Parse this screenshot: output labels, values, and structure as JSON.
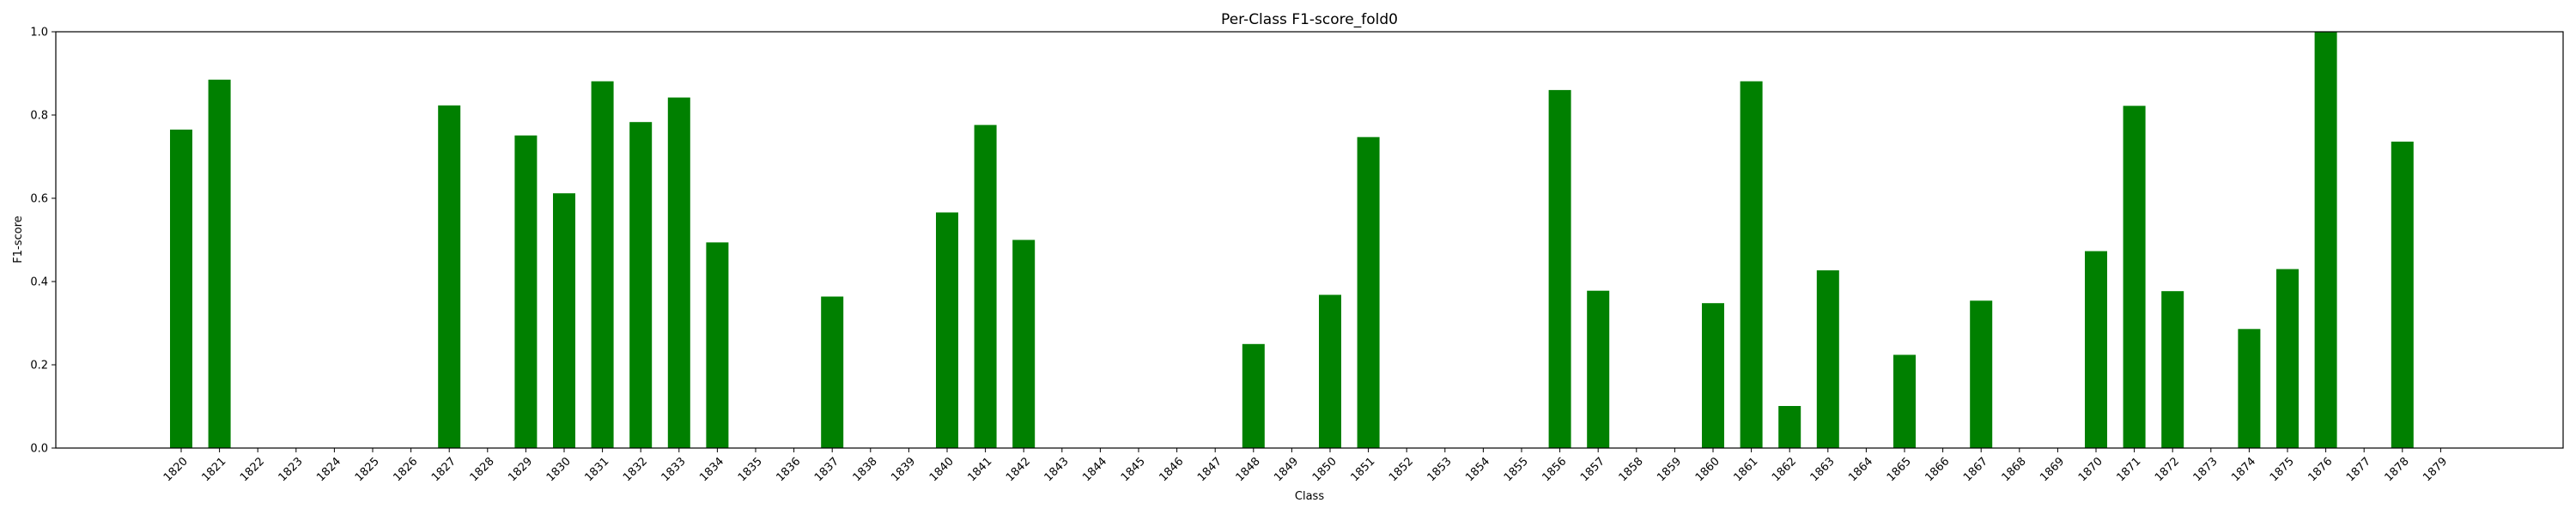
{
  "chart_data": {
    "type": "bar",
    "title": "Per-Class F1-score_fold0",
    "xlabel": "Class",
    "ylabel": "F1-score",
    "ylim": [
      0,
      1.0
    ],
    "yticks": [
      "0.0",
      "0.2",
      "0.4",
      "0.6",
      "0.8",
      "1.0"
    ],
    "grid": false,
    "bar_color": "#008000",
    "categories": [
      "1820",
      "1821",
      "1822",
      "1823",
      "1824",
      "1825",
      "1826",
      "1827",
      "1828",
      "1829",
      "1830",
      "1831",
      "1832",
      "1833",
      "1834",
      "1835",
      "1836",
      "1837",
      "1838",
      "1839",
      "1840",
      "1841",
      "1842",
      "1843",
      "1844",
      "1845",
      "1846",
      "1847",
      "1848",
      "1849",
      "1850",
      "1851",
      "1852",
      "1853",
      "1854",
      "1855",
      "1856",
      "1857",
      "1858",
      "1859",
      "1860",
      "1861",
      "1862",
      "1863",
      "1864",
      "1865",
      "1866",
      "1867",
      "1868",
      "1869",
      "1870",
      "1871",
      "1872",
      "1873",
      "1874",
      "1875",
      "1876",
      "1877",
      "1878",
      "1879"
    ],
    "values": [
      0.765,
      0.885,
      0,
      0,
      0,
      0,
      0,
      0.823,
      0,
      0.751,
      0.612,
      0.881,
      0.783,
      0.842,
      0.494,
      0,
      0,
      0.364,
      0,
      0,
      0.566,
      0.776,
      0.5,
      0,
      0,
      0,
      0,
      0,
      0.25,
      0,
      0.368,
      0.747,
      0,
      0,
      0,
      0,
      0.86,
      0.378,
      0,
      0,
      0.348,
      0.881,
      0.101,
      0.427,
      0,
      0.224,
      0,
      0.354,
      0,
      0,
      0.473,
      0.822,
      0.377,
      0,
      0.286,
      0.43,
      1.0,
      0,
      0.736,
      0
    ]
  }
}
